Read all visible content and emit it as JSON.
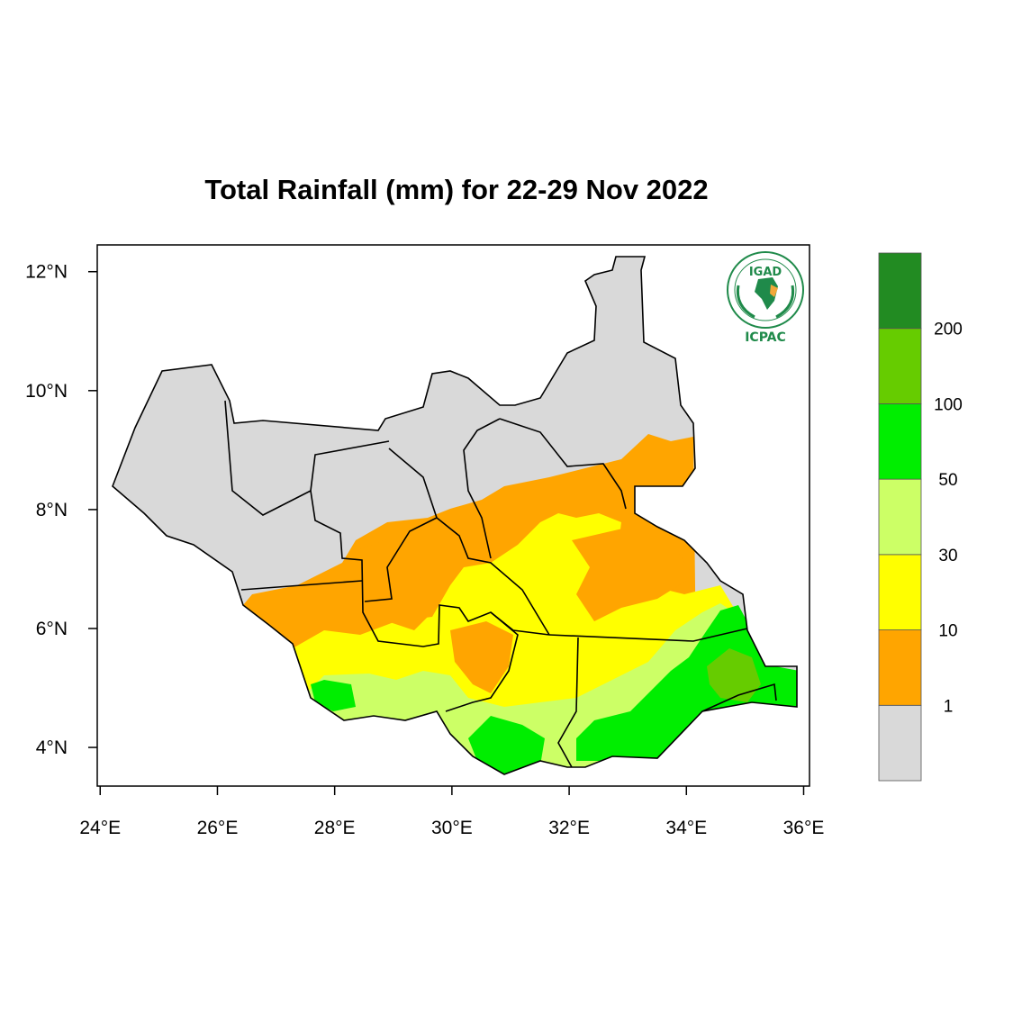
{
  "title": "Total Rainfall (mm) for 22-29 Nov 2022",
  "chart_data": {
    "type": "heatmap",
    "title": "Total Rainfall (mm) for 22-29 Nov 2022",
    "x_axis": {
      "ticks": [
        "24°E",
        "26°E",
        "28°E",
        "30°E",
        "32°E",
        "34°E",
        "36°E"
      ],
      "tick_values": [
        24,
        26,
        28,
        30,
        32,
        34,
        36
      ],
      "range": [
        23.95,
        36.1
      ]
    },
    "y_axis": {
      "ticks": [
        "4°N",
        "6°N",
        "8°N",
        "10°N",
        "12°N"
      ],
      "tick_values": [
        4,
        6,
        8,
        10,
        12
      ],
      "range": [
        3.35,
        12.45
      ]
    },
    "legend": {
      "placement": "right",
      "thresholds": [
        "1",
        "10",
        "30",
        "50",
        "100",
        "200"
      ],
      "classes": [
        {
          "min": null,
          "max": 1,
          "color": "#d9d9d9"
        },
        {
          "min": 1,
          "max": 10,
          "color": "#ffa500"
        },
        {
          "min": 10,
          "max": 30,
          "color": "#ffff00"
        },
        {
          "min": 30,
          "max": 50,
          "color": "#ccff66"
        },
        {
          "min": 50,
          "max": 100,
          "color": "#00ee00"
        },
        {
          "min": 100,
          "max": 200,
          "color": "#66cc00"
        },
        {
          "min": 200,
          "max": null,
          "color": "#228b22"
        }
      ]
    }
  },
  "logo": {
    "name": "igad-icpac-logo",
    "top_text": "IGAD",
    "bottom_text": "ICPAC"
  }
}
